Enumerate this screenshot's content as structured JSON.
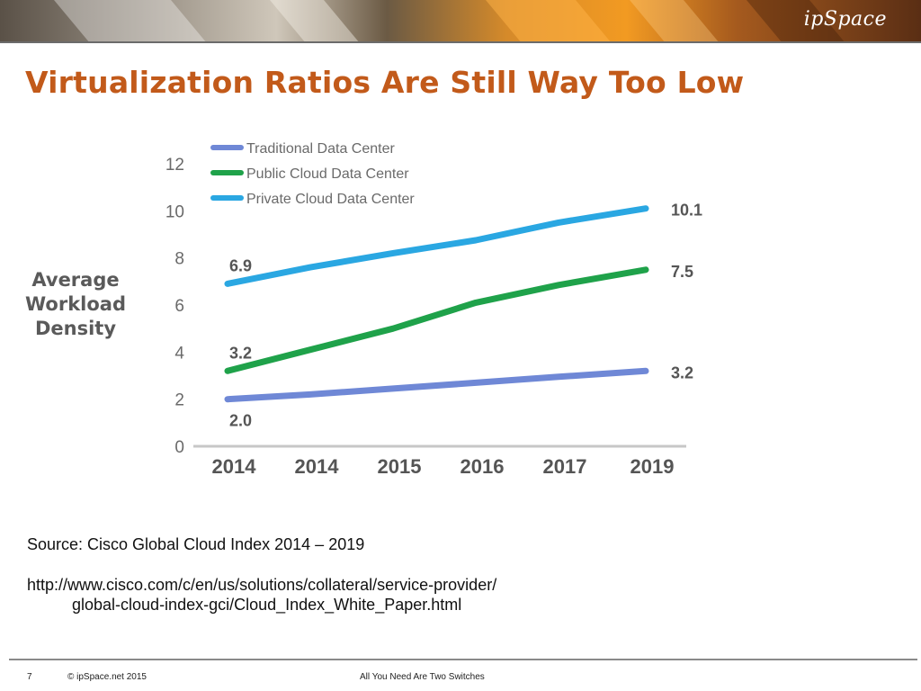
{
  "header": {
    "logo_text": "ipSpace"
  },
  "slide": {
    "title": "Virtualization Ratios Are Still Way Too Low",
    "y_axis_label": [
      "Average",
      "Workload",
      "Density"
    ],
    "source": "Source: Cisco Global Cloud Index 2014 – 2019",
    "url_line1": "http://www.cisco.com/c/en/us/solutions/collateral/service-provider/",
    "url_line2": "global-cloud-index-gci/Cloud_Index_White_Paper.html"
  },
  "footer": {
    "page_number": "7",
    "copyright": "© ipSpace.net 2015",
    "deck_title": "All You Need Are Two Switches"
  },
  "colors": {
    "title": "#c25a1a",
    "traditional": "#6f88d6",
    "public": "#1fa24a",
    "private": "#2aa7e2"
  },
  "chart_data": {
    "type": "line",
    "categories": [
      "2014",
      "2014",
      "2015",
      "2016",
      "2017",
      "2019"
    ],
    "ylim": [
      0,
      12
    ],
    "yticks": [
      0,
      2,
      4,
      6,
      8,
      10,
      12
    ],
    "grid": false,
    "legend_position": "top-left",
    "series": [
      {
        "name": "Traditional Data Center",
        "color": "#6f88d6",
        "values": [
          2.0,
          2.2,
          2.45,
          2.7,
          2.95,
          3.2
        ],
        "start_label": "2.0",
        "end_label": "3.2"
      },
      {
        "name": "Public Cloud Data Center",
        "color": "#1fa24a",
        "values": [
          3.2,
          4.1,
          5.0,
          6.1,
          6.85,
          7.5
        ],
        "start_label": "3.2",
        "end_label": "7.5"
      },
      {
        "name": "Private Cloud Data Center",
        "color": "#2aa7e2",
        "values": [
          6.9,
          7.6,
          8.2,
          8.75,
          9.5,
          10.1
        ],
        "start_label": "6.9",
        "end_label": "10.1"
      }
    ]
  }
}
